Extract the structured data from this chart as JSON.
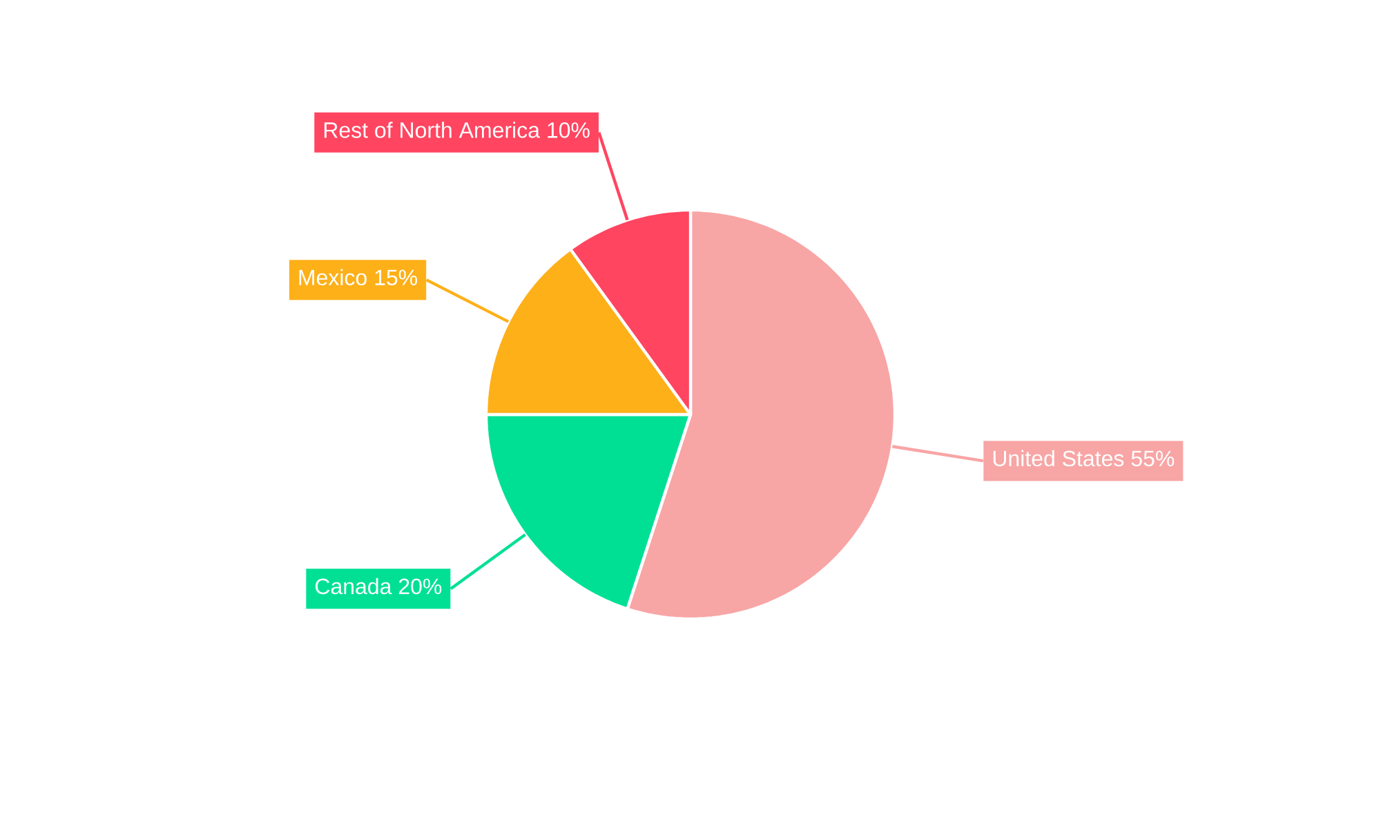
{
  "chart_data": {
    "type": "pie",
    "categories": [
      "United States",
      "Canada",
      "Mexico",
      "Rest of North America"
    ],
    "values": [
      55,
      20,
      15,
      10
    ],
    "value_labels": [
      "55%",
      "20%",
      "15%",
      "10%"
    ],
    "colors": [
      "#f8a5a5",
      "#00e095",
      "#feb019",
      "#ff4560"
    ]
  }
}
